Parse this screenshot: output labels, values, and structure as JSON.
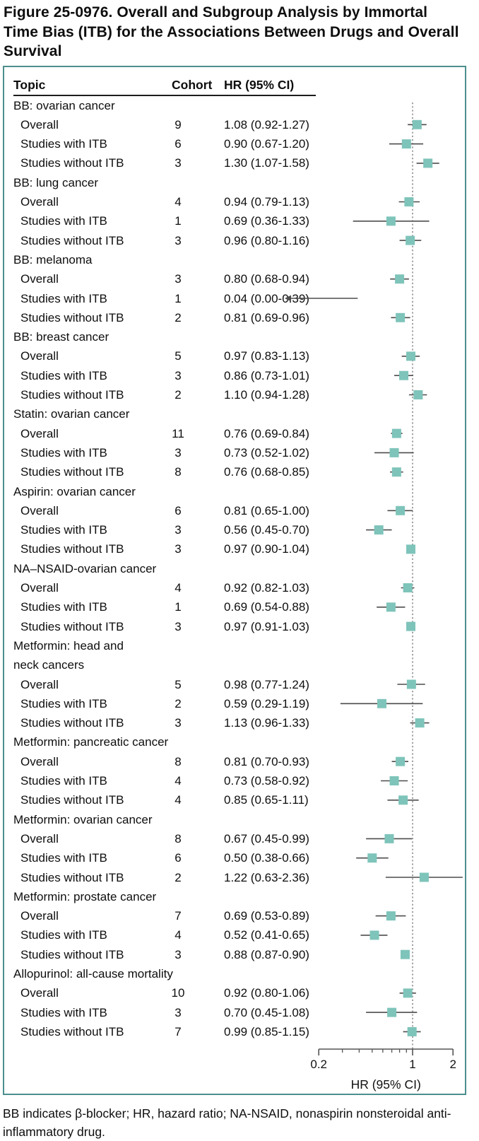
{
  "figure": {
    "title": "Figure 25-0976. Overall and Subgroup Analysis by Immortal Time Bias (ITB) for the Associations Between Drugs and Overall Survival",
    "footnote": "BB indicates β-blocker; HR, hazard ratio; NA-NSAID, nonaspirin nonsteroidal anti-inflammatory drug."
  },
  "table": {
    "headers": [
      "Topic",
      "Cohort",
      "HR (95% CI)"
    ]
  },
  "colors": {
    "box_border_teal": "#4C8F8D",
    "marker_teal": "#7EC4BA",
    "ci_line_gray": "#4D4D4D",
    "reference_dotted_gray": "#9a9a9a"
  },
  "chart_data": {
    "type": "scatter",
    "variant": "forest-plot",
    "xlabel": "HR (95% CI)",
    "x_scale": "log",
    "xlim": [
      0.2,
      2
    ],
    "ref_line_x": 1,
    "x_ticks_labeled": [
      "0.2",
      "1",
      "2"
    ],
    "x_tick_values_labeled": [
      0.2,
      1,
      2
    ],
    "x_ticks_minor": [
      0.3,
      0.4,
      0.5,
      0.6,
      0.7,
      0.8,
      0.9
    ],
    "grid": false,
    "groups": [
      {
        "label": "BB: ovarian cancer",
        "rows": [
          {
            "topic": "Overall",
            "cohort": "9",
            "hr_text": "1.08 (0.92-1.27)",
            "hr": 1.08,
            "lo": 0.92,
            "hi": 1.27
          },
          {
            "topic": "Studies with ITB",
            "cohort": "6",
            "hr_text": "0.90 (0.67-1.20)",
            "hr": 0.9,
            "lo": 0.67,
            "hi": 1.2
          },
          {
            "topic": "Studies without ITB",
            "cohort": "3",
            "hr_text": "1.30 (1.07-1.58)",
            "hr": 1.3,
            "lo": 1.07,
            "hi": 1.58
          }
        ]
      },
      {
        "label": "BB: lung cancer",
        "rows": [
          {
            "topic": "Overall",
            "cohort": "4",
            "hr_text": "0.94 (0.79-1.13)",
            "hr": 0.94,
            "lo": 0.79,
            "hi": 1.13
          },
          {
            "topic": "Studies with ITB",
            "cohort": "1",
            "hr_text": "0.69 (0.36-1.33)",
            "hr": 0.69,
            "lo": 0.36,
            "hi": 1.33
          },
          {
            "topic": "Studies without ITB",
            "cohort": "3",
            "hr_text": "0.96 (0.80-1.16)",
            "hr": 0.96,
            "lo": 0.8,
            "hi": 1.16
          }
        ]
      },
      {
        "label": "BB: melanoma",
        "rows": [
          {
            "topic": "Overall",
            "cohort": "3",
            "hr_text": "0.80 (0.68-0.94)",
            "hr": 0.8,
            "lo": 0.68,
            "hi": 0.94
          },
          {
            "topic": "Studies with ITB",
            "cohort": "1",
            "hr_text": "0.04 (0.00-0.39)",
            "hr": 0.04,
            "lo": 0.0,
            "hi": 0.39,
            "offscale_left": true
          },
          {
            "topic": "Studies without ITB",
            "cohort": "2",
            "hr_text": "0.81 (0.69-0.96)",
            "hr": 0.81,
            "lo": 0.69,
            "hi": 0.96
          }
        ]
      },
      {
        "label": "BB: breast cancer",
        "rows": [
          {
            "topic": "Overall",
            "cohort": "5",
            "hr_text": "0.97 (0.83-1.13)",
            "hr": 0.97,
            "lo": 0.83,
            "hi": 1.13
          },
          {
            "topic": "Studies with ITB",
            "cohort": "3",
            "hr_text": "0.86 (0.73-1.01)",
            "hr": 0.86,
            "lo": 0.73,
            "hi": 1.01
          },
          {
            "topic": "Studies without ITB",
            "cohort": "2",
            "hr_text": "1.10 (0.94-1.28)",
            "hr": 1.1,
            "lo": 0.94,
            "hi": 1.28
          }
        ]
      },
      {
        "label": "Statin: ovarian cancer",
        "rows": [
          {
            "topic": "Overall",
            "cohort": "11",
            "hr_text": "0.76 (0.69-0.84)",
            "hr": 0.76,
            "lo": 0.69,
            "hi": 0.84
          },
          {
            "topic": "Studies with ITB",
            "cohort": "3",
            "hr_text": "0.73 (0.52-1.02)",
            "hr": 0.73,
            "lo": 0.52,
            "hi": 1.02
          },
          {
            "topic": "Studies without ITB",
            "cohort": "8",
            "hr_text": "0.76 (0.68-0.85)",
            "hr": 0.76,
            "lo": 0.68,
            "hi": 0.85
          }
        ]
      },
      {
        "label": "Aspirin: ovarian cancer",
        "rows": [
          {
            "topic": "Overall",
            "cohort": "6",
            "hr_text": "0.81 (0.65-1.00)",
            "hr": 0.81,
            "lo": 0.65,
            "hi": 1.0
          },
          {
            "topic": "Studies with ITB",
            "cohort": "3",
            "hr_text": "0.56 (0.45-0.70)",
            "hr": 0.56,
            "lo": 0.45,
            "hi": 0.7
          },
          {
            "topic": "Studies without ITB",
            "cohort": "3",
            "hr_text": "0.97 (0.90-1.04)",
            "hr": 0.97,
            "lo": 0.9,
            "hi": 1.04
          }
        ]
      },
      {
        "label": "NA–NSAID-ovarian cancer",
        "rows": [
          {
            "topic": "Overall",
            "cohort": "4",
            "hr_text": "0.92 (0.82-1.03)",
            "hr": 0.92,
            "lo": 0.82,
            "hi": 1.03
          },
          {
            "topic": "Studies with ITB",
            "cohort": "1",
            "hr_text": "0.69 (0.54-0.88)",
            "hr": 0.69,
            "lo": 0.54,
            "hi": 0.88
          },
          {
            "topic": "Studies without ITB",
            "cohort": "3",
            "hr_text": "0.97 (0.91-1.03)",
            "hr": 0.97,
            "lo": 0.91,
            "hi": 1.03
          }
        ]
      },
      {
        "label": "Metformin: head and neck cancers",
        "label_lines": [
          "Metformin: head and",
          "neck cancers"
        ],
        "rows": [
          {
            "topic": "Overall",
            "cohort": "5",
            "hr_text": "0.98 (0.77-1.24)",
            "hr": 0.98,
            "lo": 0.77,
            "hi": 1.24
          },
          {
            "topic": "Studies with ITB",
            "cohort": "2",
            "hr_text": "0.59 (0.29-1.19)",
            "hr": 0.59,
            "lo": 0.29,
            "hi": 1.19
          },
          {
            "topic": "Studies without ITB",
            "cohort": "3",
            "hr_text": "1.13 (0.96-1.33)",
            "hr": 1.13,
            "lo": 0.96,
            "hi": 1.33
          }
        ]
      },
      {
        "label": "Metformin: pancreatic cancer",
        "rows": [
          {
            "topic": "Overall",
            "cohort": "8",
            "hr_text": "0.81 (0.70-0.93)",
            "hr": 0.81,
            "lo": 0.7,
            "hi": 0.93
          },
          {
            "topic": "Studies with ITB",
            "cohort": "4",
            "hr_text": "0.73 (0.58-0.92)",
            "hr": 0.73,
            "lo": 0.58,
            "hi": 0.92
          },
          {
            "topic": "Studies without ITB",
            "cohort": "4",
            "hr_text": "0.85 (0.65-1.11)",
            "hr": 0.85,
            "lo": 0.65,
            "hi": 1.11
          }
        ]
      },
      {
        "label": "Metformin: ovarian cancer",
        "rows": [
          {
            "topic": "Overall",
            "cohort": "8",
            "hr_text": "0.67 (0.45-0.99)",
            "hr": 0.67,
            "lo": 0.45,
            "hi": 0.99
          },
          {
            "topic": "Studies with ITB",
            "cohort": "6",
            "hr_text": "0.50 (0.38-0.66)",
            "hr": 0.5,
            "lo": 0.38,
            "hi": 0.66
          },
          {
            "topic": "Studies without ITB",
            "cohort": "2",
            "hr_text": "1.22 (0.63-2.36)",
            "hr": 1.22,
            "lo": 0.63,
            "hi": 2.36
          }
        ]
      },
      {
        "label": "Metformin: prostate cancer",
        "rows": [
          {
            "topic": "Overall",
            "cohort": "7",
            "hr_text": "0.69 (0.53-0.89)",
            "hr": 0.69,
            "lo": 0.53,
            "hi": 0.89
          },
          {
            "topic": "Studies with ITB",
            "cohort": "4",
            "hr_text": "0.52 (0.41-0.65)",
            "hr": 0.52,
            "lo": 0.41,
            "hi": 0.65
          },
          {
            "topic": "Studies without ITB",
            "cohort": "3",
            "hr_text": "0.88 (0.87-0.90)",
            "hr": 0.88,
            "lo": 0.87,
            "hi": 0.9
          }
        ]
      },
      {
        "label": "Allopurinol: all-cause mortality",
        "rows": [
          {
            "topic": "Overall",
            "cohort": "10",
            "hr_text": "0.92 (0.80-1.06)",
            "hr": 0.92,
            "lo": 0.8,
            "hi": 1.06
          },
          {
            "topic": "Studies with ITB",
            "cohort": "3",
            "hr_text": "0.70 (0.45-1.08)",
            "hr": 0.7,
            "lo": 0.45,
            "hi": 1.08
          },
          {
            "topic": "Studies without ITB",
            "cohort": "7",
            "hr_text": "0.99 (0.85-1.15)",
            "hr": 0.99,
            "lo": 0.85,
            "hi": 1.15
          }
        ]
      }
    ]
  }
}
